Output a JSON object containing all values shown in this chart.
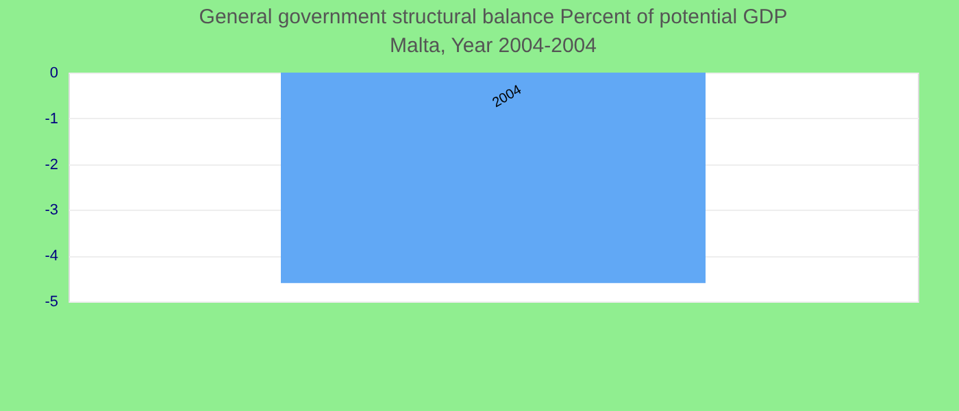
{
  "chart_data": {
    "type": "bar",
    "title": "General government structural balance  Percent of potential GDP",
    "subtitle": "Malta, Year 2004-2004",
    "categories": [
      "2004"
    ],
    "values": [
      -4.6
    ],
    "color": "#61a8f5",
    "ylim": [
      -5,
      0
    ],
    "yticks": [
      0,
      -1,
      -2,
      -3,
      -4,
      -5
    ],
    "grid": "y"
  }
}
